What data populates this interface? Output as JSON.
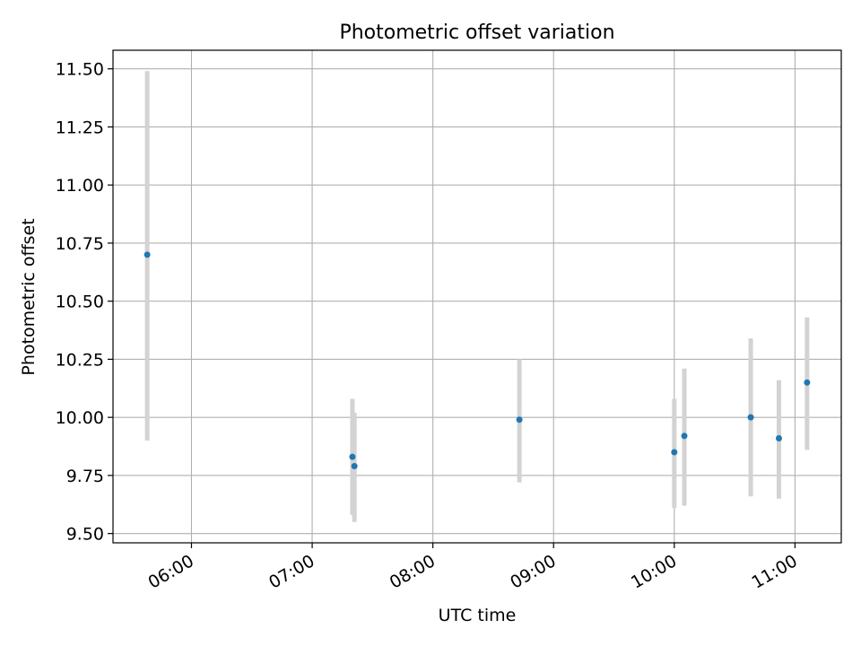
{
  "chart_data": {
    "type": "scatter",
    "title": "Photometric offset variation",
    "xlabel": "UTC time",
    "ylabel": "Photometric offset",
    "x_is_time": true,
    "x_ticks": [
      "06:00",
      "07:00",
      "08:00",
      "09:00",
      "10:00",
      "11:00"
    ],
    "y_ticks": [
      "9.50",
      "9.75",
      "10.00",
      "10.25",
      "10.50",
      "10.75",
      "11.00",
      "11.25",
      "11.50"
    ],
    "xlim": [
      "05:21",
      "11:23"
    ],
    "ylim": [
      9.46,
      11.58
    ],
    "grid": true,
    "point_color": "#1f77b4",
    "errorbar_color": "#d3d3d3",
    "points": [
      {
        "x": "05:38",
        "y": 10.7,
        "low": 9.9,
        "high": 11.49
      },
      {
        "x": "07:20",
        "y": 9.83,
        "low": 9.58,
        "high": 10.08
      },
      {
        "x": "07:21",
        "y": 9.79,
        "low": 9.55,
        "high": 10.02
      },
      {
        "x": "08:43",
        "y": 9.99,
        "low": 9.72,
        "high": 10.25
      },
      {
        "x": "10:00",
        "y": 9.85,
        "low": 9.61,
        "high": 10.08
      },
      {
        "x": "10:05",
        "y": 9.92,
        "low": 9.62,
        "high": 10.21
      },
      {
        "x": "10:38",
        "y": 10.0,
        "low": 9.66,
        "high": 10.34
      },
      {
        "x": "10:52",
        "y": 9.91,
        "low": 9.65,
        "high": 10.16
      },
      {
        "x": "11:06",
        "y": 10.15,
        "low": 9.86,
        "high": 10.43
      }
    ]
  }
}
